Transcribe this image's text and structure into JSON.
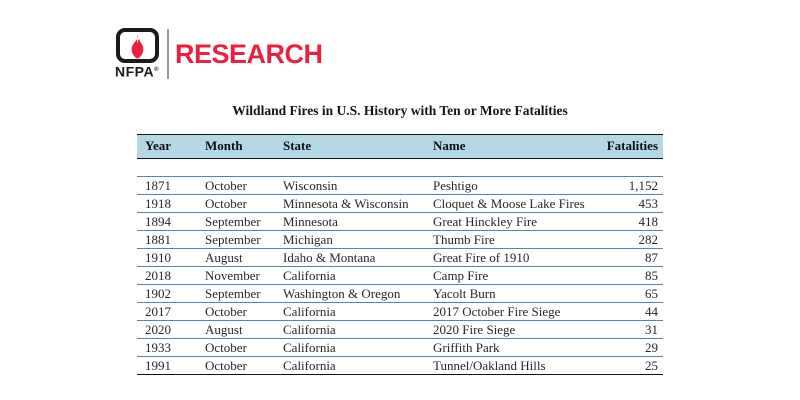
{
  "logo": {
    "org": "NFPA",
    "registered_mark": "®",
    "wordmark": "RESEARCH",
    "colors": {
      "red": "#e8213f",
      "black": "#1b1b1b"
    }
  },
  "document": {
    "title": "Wildland Fires in U.S. History with Ten or More Fatalities"
  },
  "table": {
    "columns": [
      "Year",
      "Month",
      "State",
      "Name",
      "Fatalities"
    ],
    "rows": [
      [
        "1871",
        "October",
        "Wisconsin",
        "Peshtigo",
        "1,152"
      ],
      [
        "1918",
        "October",
        "Minnesota & Wisconsin",
        "Cloquet & Moose Lake Fires",
        "453"
      ],
      [
        "1894",
        "September",
        "Minnesota",
        "Great Hinckley Fire",
        "418"
      ],
      [
        "1881",
        "September",
        "Michigan",
        "Thumb Fire",
        "282"
      ],
      [
        "1910",
        "August",
        "Idaho & Montana",
        "Great Fire of 1910",
        "87"
      ],
      [
        "2018",
        "November",
        "California",
        "Camp Fire",
        "85"
      ],
      [
        "1902",
        "September",
        "Washington & Oregon",
        "Yacolt Burn",
        "65"
      ],
      [
        "2017",
        "October",
        "California",
        "2017 October Fire Siege",
        "44"
      ],
      [
        "2020",
        "August",
        "California",
        "2020 Fire Siege",
        "31"
      ],
      [
        "1933",
        "October",
        "California",
        "Griffith Park",
        "29"
      ],
      [
        "1991",
        "October",
        "California",
        "Tunnel/Oakland Hills",
        "25"
      ]
    ],
    "header_bg": "#b4d8e4",
    "separator_color": "#5585ad"
  }
}
